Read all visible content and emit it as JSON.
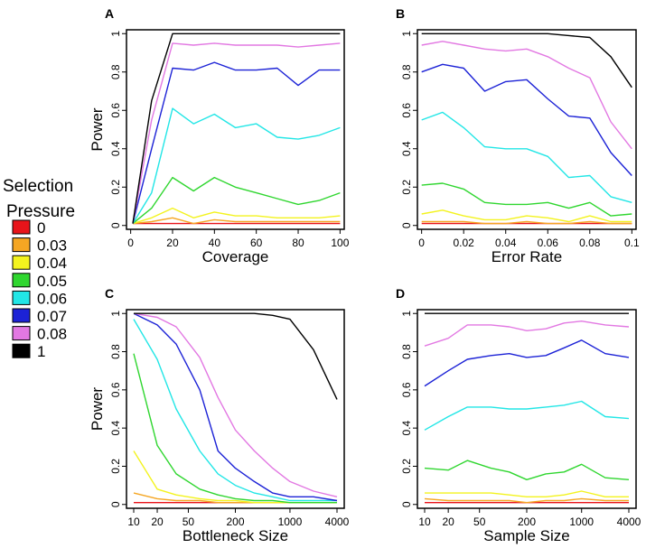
{
  "legend": {
    "title_line1": "Selection",
    "title_line2": "Pressure",
    "entries": [
      {
        "label": "0",
        "color": "#e8141a"
      },
      {
        "label": "0.03",
        "color": "#f5a623"
      },
      {
        "label": "0.04",
        "color": "#f3f31e"
      },
      {
        "label": "0.05",
        "color": "#2fd62f"
      },
      {
        "label": "0.06",
        "color": "#22e6e6"
      },
      {
        "label": "0.07",
        "color": "#1c22d6"
      },
      {
        "label": "0.08",
        "color": "#e278e2"
      },
      {
        "label": "1",
        "color": "#000000"
      }
    ]
  },
  "chart_data": [
    {
      "panel": "A",
      "type": "line",
      "xlabel": "Coverage",
      "ylabel": "Power",
      "xscale": "linear",
      "xlim": [
        -2,
        102
      ],
      "ylim": [
        -0.02,
        1.02
      ],
      "x": [
        1,
        10,
        20,
        30,
        40,
        50,
        60,
        70,
        80,
        90,
        100
      ],
      "xticks": [
        0,
        20,
        40,
        60,
        80,
        100
      ],
      "xticklabels": [
        "0",
        "20",
        "40",
        "60",
        "80",
        "100"
      ],
      "yticks": [
        0,
        0.2,
        0.4,
        0.6,
        0.8,
        1
      ],
      "yticklabels": [
        "0",
        "0.2",
        "0.4",
        "0.6",
        "0.8",
        "1"
      ],
      "series": [
        {
          "name": "0",
          "color": "#e8141a",
          "values": [
            0.01,
            0.01,
            0.01,
            0.01,
            0.01,
            0.01,
            0.01,
            0.01,
            0.01,
            0.01,
            0.01
          ]
        },
        {
          "name": "0.03",
          "color": "#f5a623",
          "values": [
            0.01,
            0.02,
            0.04,
            0.01,
            0.03,
            0.02,
            0.02,
            0.02,
            0.02,
            0.02,
            0.02
          ]
        },
        {
          "name": "0.04",
          "color": "#f3f31e",
          "values": [
            0.01,
            0.04,
            0.09,
            0.04,
            0.07,
            0.05,
            0.05,
            0.04,
            0.04,
            0.04,
            0.05
          ]
        },
        {
          "name": "0.05",
          "color": "#2fd62f",
          "values": [
            0.01,
            0.09,
            0.25,
            0.18,
            0.25,
            0.2,
            0.17,
            0.14,
            0.11,
            0.13,
            0.17
          ]
        },
        {
          "name": "0.06",
          "color": "#22e6e6",
          "values": [
            0.01,
            0.17,
            0.61,
            0.53,
            0.58,
            0.51,
            0.53,
            0.46,
            0.45,
            0.47,
            0.51
          ]
        },
        {
          "name": "0.07",
          "color": "#1c22d6",
          "values": [
            0.01,
            0.4,
            0.82,
            0.81,
            0.85,
            0.81,
            0.81,
            0.82,
            0.73,
            0.81,
            0.81
          ]
        },
        {
          "name": "0.08",
          "color": "#e278e2",
          "values": [
            0.01,
            0.55,
            0.95,
            0.94,
            0.95,
            0.94,
            0.94,
            0.94,
            0.93,
            0.94,
            0.95
          ]
        },
        {
          "name": "1",
          "color": "#000000",
          "values": [
            0.01,
            0.65,
            1.0,
            1.0,
            1.0,
            1.0,
            1.0,
            1.0,
            1.0,
            1.0,
            1.0
          ]
        }
      ]
    },
    {
      "panel": "B",
      "type": "line",
      "xlabel": "Error Rate",
      "ylabel": "",
      "xscale": "linear",
      "xlim": [
        -0.002,
        0.102
      ],
      "ylim": [
        -0.02,
        1.02
      ],
      "x": [
        0,
        0.01,
        0.02,
        0.03,
        0.04,
        0.05,
        0.06,
        0.07,
        0.08,
        0.09,
        0.1
      ],
      "xticks": [
        0,
        0.02,
        0.04,
        0.06,
        0.08,
        0.1
      ],
      "xticklabels": [
        "0",
        "0.02",
        "0.04",
        "0.06",
        "0.08",
        "0.1"
      ],
      "yticks": [
        0,
        0.2,
        0.4,
        0.6,
        0.8,
        1
      ],
      "yticklabels": [
        "0",
        "0.2",
        "0.4",
        "0.6",
        "0.8",
        "1"
      ],
      "series": [
        {
          "name": "0",
          "color": "#e8141a",
          "values": [
            0.01,
            0.01,
            0.01,
            0.01,
            0.01,
            0.01,
            0.01,
            0.01,
            0.01,
            0.01,
            0.01
          ]
        },
        {
          "name": "0.03",
          "color": "#f5a623",
          "values": [
            0.02,
            0.02,
            0.02,
            0.01,
            0.01,
            0.02,
            0.01,
            0.01,
            0.02,
            0.01,
            0.01
          ]
        },
        {
          "name": "0.04",
          "color": "#f3f31e",
          "values": [
            0.06,
            0.08,
            0.05,
            0.03,
            0.03,
            0.05,
            0.04,
            0.02,
            0.05,
            0.02,
            0.02
          ]
        },
        {
          "name": "0.05",
          "color": "#2fd62f",
          "values": [
            0.21,
            0.22,
            0.19,
            0.12,
            0.11,
            0.11,
            0.12,
            0.09,
            0.12,
            0.05,
            0.06
          ]
        },
        {
          "name": "0.06",
          "color": "#22e6e6",
          "values": [
            0.55,
            0.59,
            0.51,
            0.41,
            0.4,
            0.4,
            0.36,
            0.25,
            0.26,
            0.15,
            0.12
          ]
        },
        {
          "name": "0.07",
          "color": "#1c22d6",
          "values": [
            0.8,
            0.84,
            0.82,
            0.7,
            0.75,
            0.76,
            0.66,
            0.57,
            0.56,
            0.38,
            0.26
          ]
        },
        {
          "name": "0.08",
          "color": "#e278e2",
          "values": [
            0.94,
            0.96,
            0.94,
            0.92,
            0.91,
            0.92,
            0.88,
            0.82,
            0.77,
            0.54,
            0.4
          ]
        },
        {
          "name": "1",
          "color": "#000000",
          "values": [
            1.0,
            1.0,
            1.0,
            1.0,
            1.0,
            1.0,
            1.0,
            0.99,
            0.98,
            0.88,
            0.72
          ]
        }
      ]
    },
    {
      "panel": "C",
      "type": "line",
      "xlabel": "Bottleneck Size",
      "ylabel": "Power",
      "xscale": "log",
      "xlim": [
        10,
        4000
      ],
      "ylim": [
        -0.02,
        1.02
      ],
      "x": [
        10,
        20,
        35,
        70,
        120,
        200,
        350,
        600,
        1000,
        2000,
        4000
      ],
      "xticks": [
        10,
        20,
        50,
        200,
        1000,
        4000
      ],
      "xticklabels": [
        "10",
        "20",
        "50",
        "200",
        "1000",
        "4000"
      ],
      "yticks": [
        0,
        0.2,
        0.4,
        0.6,
        0.8,
        1
      ],
      "yticklabels": [
        "0",
        "0.2",
        "0.4",
        "0.6",
        "0.8",
        "1"
      ],
      "series": [
        {
          "name": "0",
          "color": "#e8141a",
          "values": [
            0.01,
            0.01,
            0.01,
            0.01,
            0.01,
            0.01,
            0.01,
            0.01,
            0.01,
            0.01,
            0.01
          ]
        },
        {
          "name": "0.03",
          "color": "#f5a623",
          "values": [
            0.06,
            0.03,
            0.02,
            0.02,
            0.01,
            0.01,
            0.01,
            0.01,
            0.01,
            0.01,
            0.01
          ]
        },
        {
          "name": "0.04",
          "color": "#f3f31e",
          "values": [
            0.28,
            0.08,
            0.05,
            0.03,
            0.02,
            0.02,
            0.01,
            0.01,
            0.01,
            0.01,
            0.01
          ]
        },
        {
          "name": "0.05",
          "color": "#2fd62f",
          "values": [
            0.79,
            0.31,
            0.16,
            0.08,
            0.05,
            0.03,
            0.02,
            0.02,
            0.01,
            0.01,
            0.01
          ]
        },
        {
          "name": "0.06",
          "color": "#22e6e6",
          "values": [
            0.97,
            0.76,
            0.5,
            0.28,
            0.16,
            0.1,
            0.06,
            0.04,
            0.02,
            0.02,
            0.02
          ]
        },
        {
          "name": "0.07",
          "color": "#1c22d6",
          "values": [
            1.0,
            0.94,
            0.84,
            0.6,
            0.28,
            0.19,
            0.12,
            0.06,
            0.04,
            0.04,
            0.02
          ]
        },
        {
          "name": "0.08",
          "color": "#e278e2",
          "values": [
            1.0,
            0.98,
            0.93,
            0.77,
            0.56,
            0.39,
            0.28,
            0.19,
            0.12,
            0.07,
            0.04
          ]
        },
        {
          "name": "1",
          "color": "#000000",
          "values": [
            1.0,
            1.0,
            1.0,
            1.0,
            1.0,
            1.0,
            1.0,
            0.99,
            0.97,
            0.81,
            0.55
          ]
        }
      ]
    },
    {
      "panel": "D",
      "type": "line",
      "xlabel": "Sample Size",
      "ylabel": "",
      "xscale": "log",
      "xlim": [
        10,
        4000
      ],
      "ylim": [
        -0.02,
        1.02
      ],
      "x": [
        10,
        20,
        35,
        70,
        120,
        200,
        350,
        600,
        1000,
        2000,
        4000
      ],
      "xticks": [
        10,
        20,
        50,
        200,
        1000,
        4000
      ],
      "xticklabels": [
        "10",
        "20",
        "50",
        "200",
        "1000",
        "4000"
      ],
      "yticks": [
        0,
        0.2,
        0.4,
        0.6,
        0.8,
        1
      ],
      "yticklabels": [
        "0",
        "0.2",
        "0.4",
        "0.6",
        "0.8",
        "1"
      ],
      "series": [
        {
          "name": "0",
          "color": "#e8141a",
          "values": [
            0.01,
            0.01,
            0.01,
            0.01,
            0.01,
            0.01,
            0.01,
            0.01,
            0.01,
            0.01,
            0.01
          ]
        },
        {
          "name": "0.03",
          "color": "#f5a623",
          "values": [
            0.03,
            0.02,
            0.02,
            0.02,
            0.02,
            0.01,
            0.02,
            0.02,
            0.03,
            0.02,
            0.02
          ]
        },
        {
          "name": "0.04",
          "color": "#f3f31e",
          "values": [
            0.06,
            0.06,
            0.06,
            0.06,
            0.05,
            0.04,
            0.04,
            0.05,
            0.07,
            0.04,
            0.04
          ]
        },
        {
          "name": "0.05",
          "color": "#2fd62f",
          "values": [
            0.19,
            0.18,
            0.23,
            0.19,
            0.17,
            0.13,
            0.16,
            0.17,
            0.21,
            0.14,
            0.13
          ]
        },
        {
          "name": "0.06",
          "color": "#22e6e6",
          "values": [
            0.39,
            0.46,
            0.51,
            0.51,
            0.5,
            0.5,
            0.51,
            0.52,
            0.54,
            0.46,
            0.45
          ]
        },
        {
          "name": "0.07",
          "color": "#1c22d6",
          "values": [
            0.62,
            0.7,
            0.76,
            0.78,
            0.79,
            0.77,
            0.78,
            0.82,
            0.86,
            0.79,
            0.77
          ]
        },
        {
          "name": "0.08",
          "color": "#e278e2",
          "values": [
            0.83,
            0.87,
            0.94,
            0.94,
            0.93,
            0.91,
            0.92,
            0.95,
            0.96,
            0.94,
            0.93
          ]
        },
        {
          "name": "1",
          "color": "#000000",
          "values": [
            1.0,
            1.0,
            1.0,
            1.0,
            1.0,
            1.0,
            1.0,
            1.0,
            1.0,
            1.0,
            1.0
          ]
        }
      ]
    }
  ]
}
